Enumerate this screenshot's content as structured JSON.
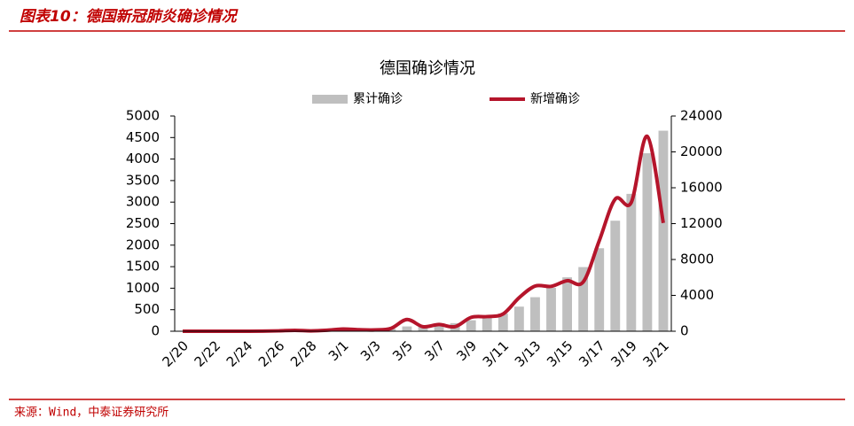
{
  "header": {
    "title": "图表10：德国新冠肺炎确诊情况"
  },
  "footer": {
    "source": "来源：Wind，中泰证券研究所"
  },
  "chart_data": {
    "type": "bar-line",
    "title": "德国确诊情况",
    "categories": [
      "2/20",
      null,
      "2/22",
      null,
      "2/24",
      null,
      "2/26",
      null,
      "2/28",
      null,
      "3/1",
      null,
      "3/3",
      null,
      "3/5",
      null,
      "3/7",
      null,
      "3/9",
      null,
      "3/11",
      null,
      "3/13",
      null,
      "3/15",
      null,
      "3/17",
      null,
      "3/19",
      null,
      "3/21"
    ],
    "series": [
      {
        "name": "累计确诊",
        "type": "bar",
        "axis": "y2",
        "color": "#bfbfbf",
        "values": [
          16,
          16,
          16,
          16,
          16,
          18,
          27,
          48,
          57,
          79,
          130,
          165,
          196,
          262,
          534,
          639,
          795,
          902,
          1224,
          1565,
          1966,
          2745,
          3795,
          4838,
          6012,
          7156,
          9257,
          12327,
          15320,
          19848,
          22364
        ]
      },
      {
        "name": "新增确诊",
        "type": "line",
        "axis": "y",
        "color": "#b5152b",
        "values": [
          0,
          0,
          0,
          0,
          0,
          2,
          9,
          21,
          9,
          22,
          51,
          35,
          31,
          66,
          272,
          105,
          156,
          107,
          322,
          341,
          401,
          779,
          1050,
          1043,
          1174,
          1144,
          2101,
          3070,
          2993,
          4528,
          2516
        ]
      }
    ],
    "ylim": [
      0,
      5000
    ],
    "yticks": [
      0,
      500,
      1000,
      1500,
      2000,
      2500,
      3000,
      3500,
      4000,
      4500,
      5000
    ],
    "y2lim": [
      0,
      24000
    ],
    "y2ticks": [
      0,
      4000,
      8000,
      12000,
      16000,
      20000,
      24000
    ],
    "legend": "top"
  }
}
